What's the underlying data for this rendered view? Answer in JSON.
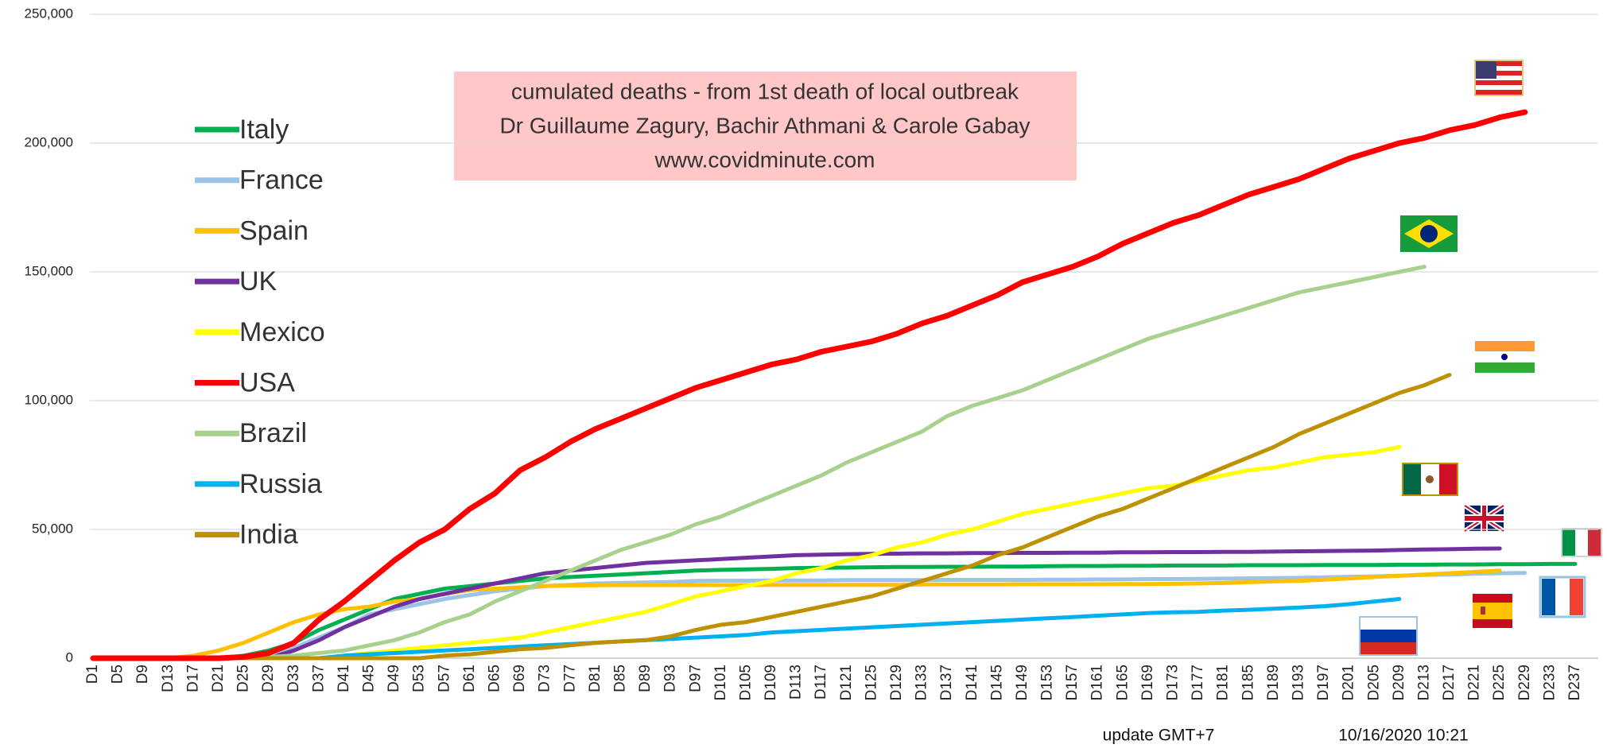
{
  "chart_data": {
    "type": "line",
    "title": [
      "cumulated deaths - from 1st death  of local outbreak",
      "Dr Guillaume Zagury, Bachir Athmani & Carole Gabay",
      "www.covidminute.com"
    ],
    "annotations": [
      "update GMT+7",
      "10/16/2020 10:21"
    ],
    "categories": [
      "D1",
      "D5",
      "D9",
      "D13",
      "D17",
      "D21",
      "D25",
      "D29",
      "D33",
      "D37",
      "D41",
      "D45",
      "D49",
      "D53",
      "D57",
      "D61",
      "D65",
      "D69",
      "D73",
      "D77",
      "D81",
      "D85",
      "D89",
      "D93",
      "D97",
      "D101",
      "D105",
      "D109",
      "D113",
      "D117",
      "D121",
      "D125",
      "D129",
      "D133",
      "D137",
      "D141",
      "D145",
      "D149",
      "D153",
      "D157",
      "D161",
      "D165",
      "D169",
      "D173",
      "D177",
      "D181",
      "D185",
      "D189",
      "D193",
      "D197",
      "D201",
      "D205",
      "D209",
      "D213",
      "D217",
      "D221",
      "D225",
      "D229",
      "D233",
      "D237"
    ],
    "ylim": [
      0,
      250000
    ],
    "yticks": [
      0,
      {
        "value": 50000,
        "label": "50,000"
      },
      {
        "value": 100000,
        "label": "100,000"
      },
      {
        "value": 150000,
        "label": "150,000"
      },
      {
        "value": 200000,
        "label": "200,000"
      },
      {
        "value": 250000,
        "label": "250,000"
      }
    ],
    "grid": true,
    "legend_position": "upper left",
    "series": [
      {
        "name": "Italy",
        "color": "#00b050",
        "values": [
          0,
          0,
          0,
          0,
          0,
          0,
          1000,
          3000,
          6000,
          11000,
          15000,
          19000,
          23000,
          25000,
          27000,
          28000,
          29000,
          30000,
          31000,
          31500,
          32000,
          32500,
          33000,
          33500,
          34000,
          34300,
          34500,
          34700,
          35000,
          35100,
          35200,
          35300,
          35400,
          35400,
          35500,
          35500,
          35600,
          35600,
          35700,
          35800,
          35800,
          35900,
          35900,
          36000,
          36000,
          36000,
          36100,
          36100,
          36100,
          36200,
          36200,
          36200,
          36300,
          36300,
          36400,
          36400,
          36500,
          36500,
          36600,
          36600
        ]
      },
      {
        "name": "France",
        "color": "#9dc3e6",
        "values": [
          0,
          0,
          0,
          0,
          0,
          0,
          0,
          2000,
          4000,
          8000,
          12000,
          17000,
          19000,
          21000,
          23000,
          24500,
          26000,
          27000,
          28000,
          28500,
          29000,
          29200,
          29400,
          29600,
          30000,
          30100,
          30100,
          30200,
          30200,
          30200,
          30300,
          30300,
          30300,
          30300,
          30400,
          30400,
          30400,
          30400,
          30500,
          30500,
          30600,
          30600,
          30700,
          30700,
          30800,
          30900,
          31000,
          31100,
          31200,
          31400,
          31600,
          31800,
          32000,
          32300,
          32500,
          32800,
          33000,
          33100,
          null,
          null
        ]
      },
      {
        "name": "Spain",
        "color": "#ffc000",
        "values": [
          0,
          0,
          0,
          0,
          1000,
          3000,
          6000,
          10000,
          14000,
          17000,
          19000,
          20000,
          22000,
          23000,
          25000,
          26500,
          27000,
          27500,
          28000,
          28200,
          28300,
          28400,
          28400,
          28400,
          28400,
          28400,
          28400,
          28500,
          28500,
          28500,
          28500,
          28500,
          28500,
          28600,
          28600,
          28600,
          28600,
          28700,
          28700,
          28700,
          28700,
          28800,
          28800,
          28900,
          29000,
          29200,
          29500,
          29800,
          30000,
          30500,
          31000,
          31500,
          32000,
          32500,
          33000,
          33500,
          34000,
          null,
          null,
          null
        ]
      },
      {
        "name": "UK",
        "color": "#7030a0",
        "values": [
          0,
          0,
          0,
          0,
          0,
          0,
          0,
          0,
          3000,
          7000,
          12000,
          16000,
          20000,
          23000,
          25000,
          27000,
          29000,
          31000,
          33000,
          34000,
          35000,
          36000,
          37000,
          37500,
          38000,
          38500,
          39000,
          39500,
          40000,
          40200,
          40400,
          40500,
          40600,
          40700,
          40700,
          40800,
          40800,
          40900,
          40900,
          41000,
          41000,
          41100,
          41100,
          41200,
          41200,
          41300,
          41300,
          41400,
          41500,
          41600,
          41700,
          41800,
          42000,
          42200,
          42300,
          42500,
          42600,
          null,
          null,
          null
        ]
      },
      {
        "name": "Mexico",
        "color": "#ffff00",
        "values": [
          0,
          0,
          0,
          0,
          0,
          0,
          0,
          0,
          0,
          0,
          1000,
          2000,
          3000,
          4000,
          5000,
          6000,
          7000,
          8000,
          10000,
          12000,
          14000,
          16000,
          18000,
          21000,
          24000,
          26000,
          28000,
          30000,
          33000,
          35000,
          38000,
          40000,
          43000,
          45000,
          48000,
          50000,
          53000,
          56000,
          58000,
          60000,
          62000,
          64000,
          66000,
          67000,
          69000,
          71000,
          73000,
          74000,
          76000,
          78000,
          79000,
          80000,
          82000,
          null,
          null,
          null,
          null,
          null,
          null,
          null
        ]
      },
      {
        "name": "USA",
        "color": "#ff0000",
        "values": [
          0,
          0,
          0,
          0,
          0,
          0,
          500,
          2000,
          6000,
          15000,
          22000,
          30000,
          38000,
          45000,
          50000,
          58000,
          64000,
          73000,
          78000,
          84000,
          89000,
          93000,
          97000,
          101000,
          105000,
          108000,
          111000,
          114000,
          116000,
          119000,
          121000,
          123000,
          126000,
          130000,
          133000,
          137000,
          141000,
          146000,
          149000,
          152000,
          156000,
          161000,
          165000,
          169000,
          172000,
          176000,
          180000,
          183000,
          186000,
          190000,
          194000,
          197000,
          200000,
          202000,
          205000,
          207000,
          210000,
          212000,
          null,
          null
        ]
      },
      {
        "name": "Brazil",
        "color": "#a9d18e",
        "values": [
          0,
          0,
          0,
          0,
          0,
          0,
          0,
          500,
          1000,
          2000,
          3000,
          5000,
          7000,
          10000,
          14000,
          17000,
          22000,
          26000,
          30000,
          34000,
          38000,
          42000,
          45000,
          48000,
          52000,
          55000,
          59000,
          63000,
          67000,
          71000,
          76000,
          80000,
          84000,
          88000,
          94000,
          98000,
          101000,
          104000,
          108000,
          112000,
          116000,
          120000,
          124000,
          127000,
          130000,
          133000,
          136000,
          139000,
          142000,
          144000,
          146000,
          148000,
          150000,
          152000,
          null,
          null,
          null,
          null,
          null,
          null
        ]
      },
      {
        "name": "Russia",
        "color": "#00b0f0",
        "values": [
          0,
          0,
          0,
          0,
          0,
          0,
          0,
          0,
          0,
          0,
          1000,
          1500,
          2000,
          2500,
          3000,
          3500,
          4000,
          4500,
          5000,
          5500,
          6000,
          6500,
          7000,
          7500,
          8000,
          8500,
          9000,
          10000,
          10500,
          11000,
          11500,
          12000,
          12500,
          13000,
          13500,
          14000,
          14500,
          15000,
          15500,
          16000,
          16500,
          17000,
          17500,
          17800,
          18000,
          18500,
          18800,
          19200,
          19700,
          20200,
          21000,
          22000,
          23000,
          null,
          null,
          null,
          null,
          null,
          null,
          null
        ]
      },
      {
        "name": "India",
        "color": "#bf9000",
        "values": [
          0,
          0,
          0,
          0,
          0,
          0,
          0,
          0,
          0,
          0,
          0,
          0,
          0,
          0,
          1000,
          1500,
          2500,
          3500,
          4000,
          5000,
          6000,
          6500,
          7000,
          8500,
          11000,
          13000,
          14000,
          16000,
          18000,
          20000,
          22000,
          24000,
          27000,
          30000,
          33000,
          36000,
          40000,
          43000,
          47000,
          51000,
          55000,
          58000,
          62000,
          66000,
          70000,
          74000,
          78000,
          82000,
          87000,
          91000,
          95000,
          99000,
          103000,
          106000,
          110000,
          null,
          null,
          null,
          null,
          null
        ]
      }
    ]
  }
}
